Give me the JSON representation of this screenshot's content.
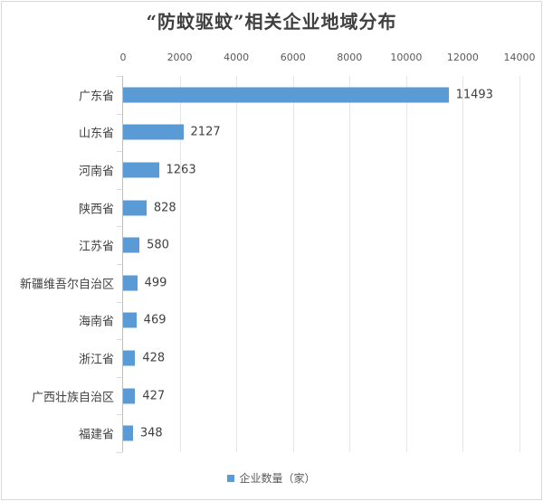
{
  "chart_data": {
    "type": "bar",
    "orientation": "horizontal",
    "title": "“防蚊驱蚊”相关企业地域分布",
    "categories": [
      "广东省",
      "山东省",
      "河南省",
      "陕西省",
      "江苏省",
      "新疆维吾尔自治区",
      "海南省",
      "浙江省",
      "广西壮族自治区",
      "福建省"
    ],
    "series": [
      {
        "name": "企业数量（家）",
        "values": [
          11493,
          2127,
          1263,
          828,
          580,
          499,
          469,
          428,
          427,
          348
        ],
        "color": "#5b9bd5"
      }
    ],
    "xlabel": "",
    "ylabel": "",
    "xlim": [
      0,
      14000
    ],
    "x_ticks": [
      "0",
      "2000",
      "4000",
      "6000",
      "8000",
      "10000",
      "12000",
      "14000"
    ],
    "x_axis_position": "top",
    "grid": true,
    "data_labels": true,
    "legend_position": "bottom"
  }
}
